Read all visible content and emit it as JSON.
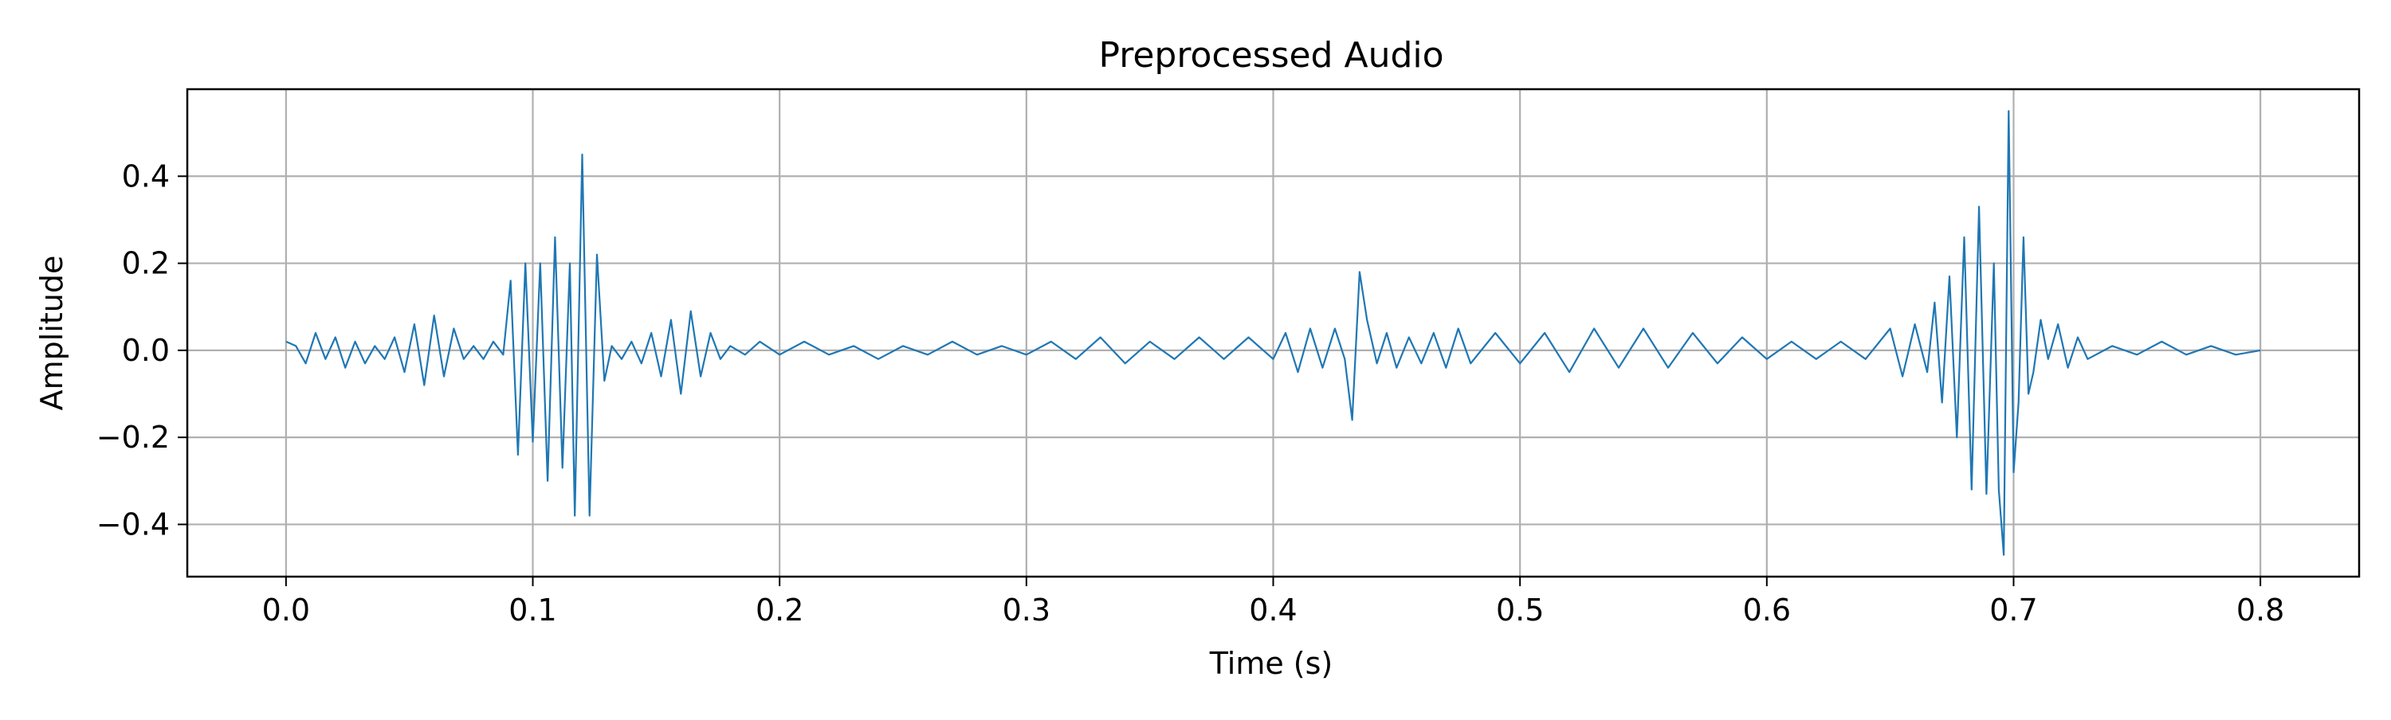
{
  "chart_data": {
    "type": "line",
    "title": "Preprocessed Audio",
    "xlabel": "Time (s)",
    "ylabel": "Amplitude",
    "xlim": [
      -0.04,
      0.84
    ],
    "ylim": [
      -0.52,
      0.6
    ],
    "xticks": [
      0.0,
      0.1,
      0.2,
      0.3,
      0.4,
      0.5,
      0.6,
      0.7,
      0.8
    ],
    "xtick_labels": [
      "0.0",
      "0.1",
      "0.2",
      "0.3",
      "0.4",
      "0.5",
      "0.6",
      "0.7",
      "0.8"
    ],
    "yticks": [
      -0.4,
      -0.2,
      0.0,
      0.2,
      0.4
    ],
    "ytick_labels": [
      "−0.4",
      "−0.2",
      "0.0",
      "0.2",
      "0.4"
    ],
    "grid": true,
    "series": [
      {
        "color": "#1f77b4",
        "x": [
          0.0,
          0.004,
          0.008,
          0.012,
          0.016,
          0.02,
          0.024,
          0.028,
          0.032,
          0.036,
          0.04,
          0.044,
          0.048,
          0.052,
          0.056,
          0.06,
          0.064,
          0.068,
          0.072,
          0.076,
          0.08,
          0.084,
          0.088,
          0.091,
          0.094,
          0.097,
          0.1,
          0.103,
          0.106,
          0.109,
          0.112,
          0.115,
          0.117,
          0.12,
          0.123,
          0.126,
          0.129,
          0.132,
          0.136,
          0.14,
          0.144,
          0.148,
          0.152,
          0.156,
          0.16,
          0.164,
          0.168,
          0.172,
          0.176,
          0.18,
          0.186,
          0.192,
          0.2,
          0.21,
          0.22,
          0.23,
          0.24,
          0.25,
          0.26,
          0.27,
          0.28,
          0.29,
          0.3,
          0.31,
          0.32,
          0.33,
          0.34,
          0.35,
          0.36,
          0.37,
          0.38,
          0.39,
          0.4,
          0.405,
          0.41,
          0.415,
          0.42,
          0.425,
          0.429,
          0.432,
          0.435,
          0.438,
          0.442,
          0.446,
          0.45,
          0.455,
          0.46,
          0.465,
          0.47,
          0.475,
          0.48,
          0.49,
          0.5,
          0.51,
          0.52,
          0.53,
          0.54,
          0.55,
          0.56,
          0.57,
          0.58,
          0.59,
          0.6,
          0.61,
          0.62,
          0.63,
          0.64,
          0.65,
          0.655,
          0.66,
          0.665,
          0.668,
          0.671,
          0.674,
          0.677,
          0.68,
          0.683,
          0.686,
          0.689,
          0.692,
          0.694,
          0.696,
          0.698,
          0.7,
          0.702,
          0.704,
          0.706,
          0.708,
          0.711,
          0.714,
          0.718,
          0.722,
          0.726,
          0.73,
          0.74,
          0.75,
          0.76,
          0.77,
          0.78,
          0.79,
          0.8
        ],
        "y": [
          0.02,
          0.01,
          -0.03,
          0.04,
          -0.02,
          0.03,
          -0.04,
          0.02,
          -0.03,
          0.01,
          -0.02,
          0.03,
          -0.05,
          0.06,
          -0.08,
          0.08,
          -0.06,
          0.05,
          -0.02,
          0.01,
          -0.02,
          0.02,
          -0.01,
          0.16,
          -0.24,
          0.2,
          -0.21,
          0.2,
          -0.3,
          0.26,
          -0.27,
          0.2,
          -0.38,
          0.45,
          -0.38,
          0.22,
          -0.07,
          0.01,
          -0.02,
          0.02,
          -0.03,
          0.04,
          -0.06,
          0.07,
          -0.1,
          0.09,
          -0.06,
          0.04,
          -0.02,
          0.01,
          -0.01,
          0.02,
          -0.01,
          0.02,
          -0.01,
          0.01,
          -0.02,
          0.01,
          -0.01,
          0.02,
          -0.01,
          0.01,
          -0.01,
          0.02,
          -0.02,
          0.03,
          -0.03,
          0.02,
          -0.02,
          0.03,
          -0.02,
          0.03,
          -0.02,
          0.04,
          -0.05,
          0.05,
          -0.04,
          0.05,
          -0.02,
          -0.16,
          0.18,
          0.07,
          -0.03,
          0.04,
          -0.04,
          0.03,
          -0.03,
          0.04,
          -0.04,
          0.05,
          -0.03,
          0.04,
          -0.03,
          0.04,
          -0.05,
          0.05,
          -0.04,
          0.05,
          -0.04,
          0.04,
          -0.03,
          0.03,
          -0.02,
          0.02,
          -0.02,
          0.02,
          -0.02,
          0.05,
          -0.06,
          0.06,
          -0.05,
          0.11,
          -0.12,
          0.17,
          -0.2,
          0.26,
          -0.32,
          0.33,
          -0.33,
          0.2,
          -0.32,
          -0.47,
          0.55,
          -0.28,
          -0.12,
          0.26,
          -0.1,
          -0.05,
          0.07,
          -0.02,
          0.06,
          -0.04,
          0.03,
          -0.02,
          0.01,
          -0.01,
          0.02,
          -0.01,
          0.01,
          -0.01,
          0.0
        ]
      }
    ]
  }
}
